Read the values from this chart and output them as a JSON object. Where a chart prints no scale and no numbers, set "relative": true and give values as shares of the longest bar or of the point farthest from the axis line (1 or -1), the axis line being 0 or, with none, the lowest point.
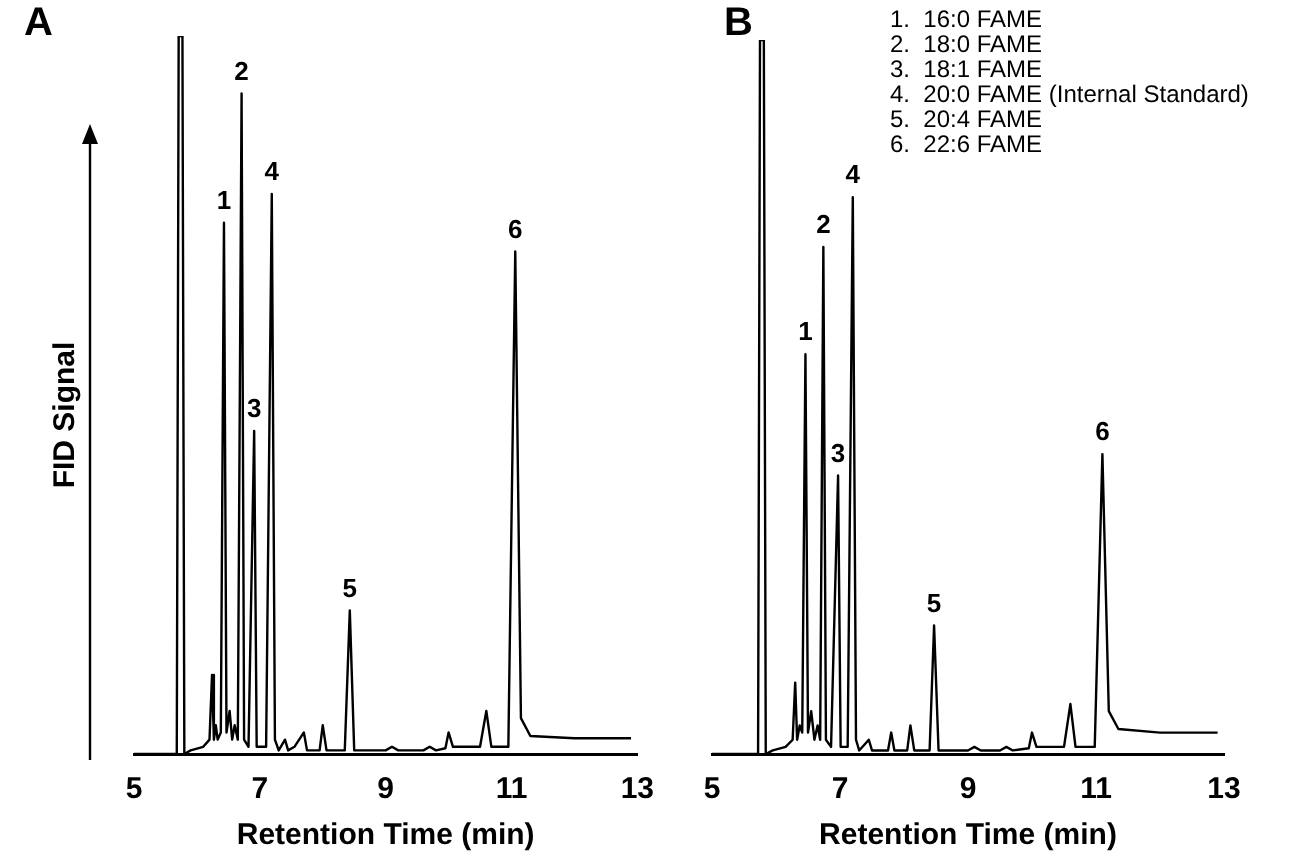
{
  "chart_data": [
    {
      "type": "line",
      "title": "A",
      "xlabel": "Retention Time (min)",
      "ylabel": "FID Signal",
      "relative": true,
      "xlim": [
        5,
        13
      ],
      "xticks": [
        5,
        7,
        9,
        11,
        13
      ],
      "tick_labels": "x",
      "marker": "none",
      "series": [
        {
          "color": "#000000",
          "x": [
            5.0,
            5.68,
            5.71,
            5.77,
            5.8,
            5.9,
            6.1,
            6.2,
            6.24,
            6.27,
            6.3,
            6.33,
            6.38,
            6.43,
            6.47,
            6.52,
            6.56,
            6.6,
            6.65,
            6.71,
            6.75,
            6.82,
            6.91,
            6.95,
            7.1,
            7.19,
            7.24,
            7.3,
            7.4,
            7.45,
            7.55,
            7.7,
            7.75,
            7.95,
            8.0,
            8.06,
            8.35,
            8.43,
            8.5,
            9.0,
            9.1,
            9.2,
            9.6,
            9.7,
            9.8,
            9.95,
            10.0,
            10.07,
            10.5,
            10.6,
            10.68,
            10.95,
            11.06,
            11.15,
            11.3,
            12.0,
            12.9
          ],
          "values": [
            0,
            0,
            1,
            1,
            0,
            0.005,
            0.01,
            0.02,
            0.11,
            0.02,
            0.04,
            0.02,
            0.03,
            0.74,
            0.03,
            0.06,
            0.02,
            0.04,
            0.02,
            0.92,
            0.02,
            0.01,
            0.45,
            0.01,
            0.01,
            0.78,
            0.02,
            0.005,
            0.02,
            0.005,
            0.01,
            0.03,
            0.005,
            0.005,
            0.04,
            0.005,
            0.005,
            0.2,
            0.005,
            0.005,
            0.01,
            0.005,
            0.005,
            0.01,
            0.005,
            0.008,
            0.03,
            0.01,
            0.01,
            0.06,
            0.01,
            0.01,
            0.7,
            0.05,
            0.025,
            0.022,
            0.022
          ]
        }
      ],
      "annotations": [
        {
          "text": "1",
          "x": 6.43,
          "y": 0.74
        },
        {
          "text": "2",
          "x": 6.71,
          "y": 0.92
        },
        {
          "text": "3",
          "x": 6.91,
          "y": 0.45
        },
        {
          "text": "4",
          "x": 7.19,
          "y": 0.78
        },
        {
          "text": "5",
          "x": 8.43,
          "y": 0.2
        },
        {
          "text": "6",
          "x": 11.06,
          "y": 0.7
        }
      ]
    },
    {
      "type": "line",
      "title": "B",
      "xlabel": "Retention Time (min)",
      "relative": true,
      "xlim": [
        5,
        13
      ],
      "xticks": [
        5,
        7,
        9,
        11,
        13
      ],
      "tick_labels": "x",
      "marker": "none",
      "series": [
        {
          "color": "#000000",
          "x": [
            5.0,
            5.72,
            5.75,
            5.81,
            5.84,
            5.95,
            6.15,
            6.26,
            6.3,
            6.33,
            6.37,
            6.41,
            6.46,
            6.5,
            6.55,
            6.6,
            6.65,
            6.69,
            6.74,
            6.78,
            6.86,
            6.97,
            7.01,
            7.12,
            7.2,
            7.25,
            7.3,
            7.45,
            7.5,
            7.75,
            7.8,
            7.85,
            8.05,
            8.1,
            8.16,
            8.4,
            8.47,
            8.54,
            9.0,
            9.1,
            9.2,
            9.5,
            9.6,
            9.7,
            9.95,
            10.0,
            10.07,
            10.5,
            10.6,
            10.68,
            10.98,
            11.1,
            11.2,
            11.35,
            12.0,
            12.9
          ],
          "values": [
            0,
            0,
            1,
            1,
            0,
            0.005,
            0.01,
            0.02,
            0.1,
            0.02,
            0.04,
            0.03,
            0.56,
            0.03,
            0.06,
            0.02,
            0.04,
            0.02,
            0.71,
            0.02,
            0.01,
            0.39,
            0.01,
            0.01,
            0.78,
            0.02,
            0.005,
            0.02,
            0.005,
            0.005,
            0.03,
            0.005,
            0.005,
            0.04,
            0.005,
            0.005,
            0.18,
            0.005,
            0.005,
            0.01,
            0.005,
            0.005,
            0.01,
            0.005,
            0.008,
            0.03,
            0.01,
            0.01,
            0.07,
            0.01,
            0.01,
            0.42,
            0.06,
            0.035,
            0.03,
            0.03
          ]
        }
      ],
      "annotations": [
        "1.  16:0 FAME",
        "2.  18:0 FAME",
        "3.  18:1 FAME",
        "4.  20:0 FAME (Internal Standard)",
        "5.  20:4 FAME",
        "6.  22:6 FAME",
        {
          "text": "1",
          "x": 6.46,
          "y": 0.56
        },
        {
          "text": "2",
          "x": 6.74,
          "y": 0.71
        },
        {
          "text": "3",
          "x": 6.97,
          "y": 0.39
        },
        {
          "text": "4",
          "x": 7.2,
          "y": 0.78
        },
        {
          "text": "5",
          "x": 8.47,
          "y": 0.18
        },
        {
          "text": "6",
          "x": 11.1,
          "y": 0.42
        }
      ]
    }
  ]
}
